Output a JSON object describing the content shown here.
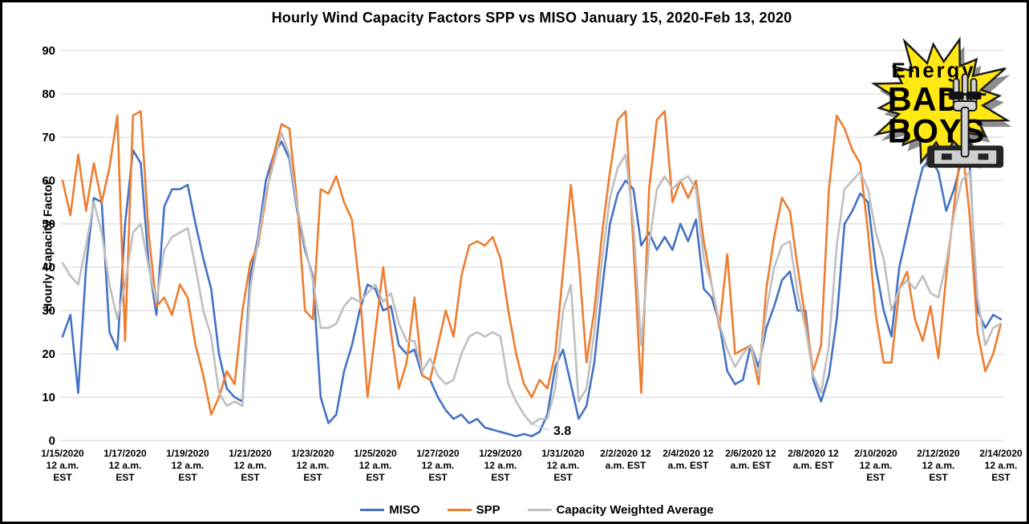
{
  "title": "Hourly Wind Capacity Factors SPP vs MISO January 15, 2020-Feb 13, 2020",
  "y_axis": {
    "label": "Hourly Capacity Factor",
    "ticks": [
      "0",
      "10",
      "20",
      "30",
      "40",
      "50",
      "60",
      "70",
      "80",
      "90"
    ]
  },
  "x_axis": {
    "tick_labels": [
      [
        "1/15/2020",
        "12 a.m.",
        "EST"
      ],
      [
        "1/17/2020",
        "12 a.m.",
        "EST"
      ],
      [
        "1/19/2020",
        "12 a.m.",
        "EST"
      ],
      [
        "1/21/2020",
        "12 a.m.",
        "EST"
      ],
      [
        "1/23/2020",
        "12 a.m.",
        "EST"
      ],
      [
        "1/25/2020",
        "12 a.m.",
        "EST"
      ],
      [
        "1/27/2020",
        "12 a.m.",
        "EST"
      ],
      [
        "1/29/2020",
        "12 a.m.",
        "EST"
      ],
      [
        "1/31/2020",
        "12 a.m.",
        "EST"
      ],
      [
        "2/2/2020 12",
        "a.m. EST"
      ],
      [
        "2/4/2020 12",
        "a.m. EST"
      ],
      [
        "2/6/2020 12",
        "a.m. EST"
      ],
      [
        "2/8/2020 12",
        "a.m. EST"
      ],
      [
        "2/10/2020",
        "12 a.m.",
        "EST"
      ],
      [
        "2/12/2020",
        "12 a.m.",
        "EST"
      ],
      [
        "2/14/2020",
        "12 a.m.",
        "EST"
      ]
    ]
  },
  "legend": {
    "items": [
      {
        "label": "MISO",
        "color": "#4472C4"
      },
      {
        "label": "SPP",
        "color": "#ED7D31"
      },
      {
        "label": "Capacity Weighted Average",
        "color": "#BFBFBF"
      }
    ]
  },
  "annotation": {
    "text": "3.8"
  },
  "logo": {
    "word1": "Energy",
    "word2": "BAD",
    "word3": "BOYS",
    "star_color": "#FFE814"
  },
  "colors": {
    "gridline": "#D9D9D9",
    "background": "#FFFFFF",
    "border": "#000000"
  },
  "chart_data": {
    "type": "line",
    "title": "Hourly Wind Capacity Factors SPP vs MISO January 15, 2020-Feb 13, 2020",
    "xlabel": "",
    "ylabel": "Hourly Capacity Factor",
    "ylim": [
      0,
      90
    ],
    "grid": "horizontal",
    "legend_position": "bottom",
    "x_start": "1/15/2020 12 a.m. EST",
    "x_end": "2/14/2020 12 a.m. EST",
    "step_hours": 6,
    "x_note": "values sampled every 6 hours, estimated from plot; 121 points spanning 30 days",
    "series": [
      {
        "name": "MISO",
        "color": "#4472C4",
        "values": [
          24,
          29,
          11,
          40,
          56,
          55,
          25,
          21,
          50,
          67,
          64,
          41,
          29,
          54,
          58,
          58,
          59,
          50,
          42,
          35,
          20,
          12,
          10,
          9,
          38,
          47,
          60,
          66,
          69,
          65,
          53,
          44,
          38,
          10,
          4,
          6,
          16,
          22,
          30,
          36,
          35,
          30,
          31,
          22,
          20,
          21,
          15,
          14,
          10,
          7,
          5,
          6,
          4,
          5,
          3,
          2.5,
          2,
          1.5,
          1,
          1.5,
          1,
          2,
          6,
          17,
          21,
          13,
          5,
          8,
          18,
          35,
          50,
          57,
          60,
          58,
          45,
          48,
          44,
          47,
          44,
          50,
          46,
          51,
          35,
          33,
          27,
          16,
          13,
          14,
          22,
          17,
          26,
          31,
          37,
          39,
          30,
          30,
          14,
          9,
          15,
          28,
          50,
          53,
          57,
          55,
          40,
          30,
          24,
          40,
          48,
          56,
          63,
          65,
          62,
          53,
          58,
          65,
          64,
          30,
          26,
          29,
          28
        ]
      },
      {
        "name": "SPP",
        "color": "#ED7D31",
        "values": [
          60,
          52,
          66,
          53,
          64,
          55,
          63,
          75,
          23,
          75,
          76,
          48,
          31,
          33,
          29,
          36,
          33,
          22,
          15,
          6,
          10,
          16,
          13,
          30,
          41,
          45,
          56,
          66,
          73,
          72,
          55,
          30,
          28,
          58,
          57,
          61,
          55,
          51,
          35,
          10,
          25,
          40,
          25,
          12,
          18,
          33,
          15,
          14,
          22,
          30,
          24,
          38,
          45,
          46,
          45,
          47,
          42,
          30,
          20,
          13,
          10,
          14,
          12,
          20,
          39,
          59,
          42,
          18,
          30,
          48,
          62,
          74,
          76,
          45,
          11,
          58,
          74,
          76,
          55,
          60,
          56,
          60,
          46,
          36,
          26,
          43,
          20,
          21,
          22,
          13,
          35,
          47,
          56,
          53,
          40,
          28,
          16,
          22,
          58,
          75,
          72,
          67,
          64,
          48,
          29,
          18,
          18,
          35,
          39,
          28,
          23,
          31,
          19,
          38,
          54,
          69,
          52,
          25,
          16,
          20,
          27
        ]
      },
      {
        "name": "Capacity Weighted Average",
        "color": "#BFBFBF",
        "values": [
          41,
          38,
          36,
          45,
          55,
          48,
          36,
          28,
          36,
          48,
          50,
          40,
          32,
          44,
          47,
          48,
          49,
          40,
          30,
          24,
          11,
          8,
          9,
          8,
          35,
          46,
          57,
          64,
          71,
          66,
          54,
          45,
          37,
          26,
          26,
          27,
          31,
          33,
          32,
          34,
          36,
          32,
          34,
          27,
          23,
          23,
          16,
          19,
          15,
          13,
          14,
          20,
          24,
          25,
          24,
          25,
          24,
          13,
          9,
          6,
          3.8,
          5,
          5,
          12,
          30,
          36,
          9,
          12,
          25,
          42,
          56,
          63,
          66,
          50,
          22,
          45,
          58,
          61,
          58,
          60,
          61,
          58,
          42,
          36,
          27,
          21,
          17,
          20,
          22,
          15,
          30,
          40,
          45,
          46,
          34,
          26,
          15,
          11,
          22,
          45,
          58,
          60,
          62,
          58,
          48,
          42,
          30,
          35,
          37,
          35,
          38,
          34,
          33,
          41,
          52,
          60,
          62,
          33,
          22,
          26,
          27
        ]
      }
    ],
    "annotations": [
      {
        "text": "3.8",
        "series": "Capacity Weighted Average",
        "x_index": 60,
        "value": 3.8
      }
    ]
  }
}
